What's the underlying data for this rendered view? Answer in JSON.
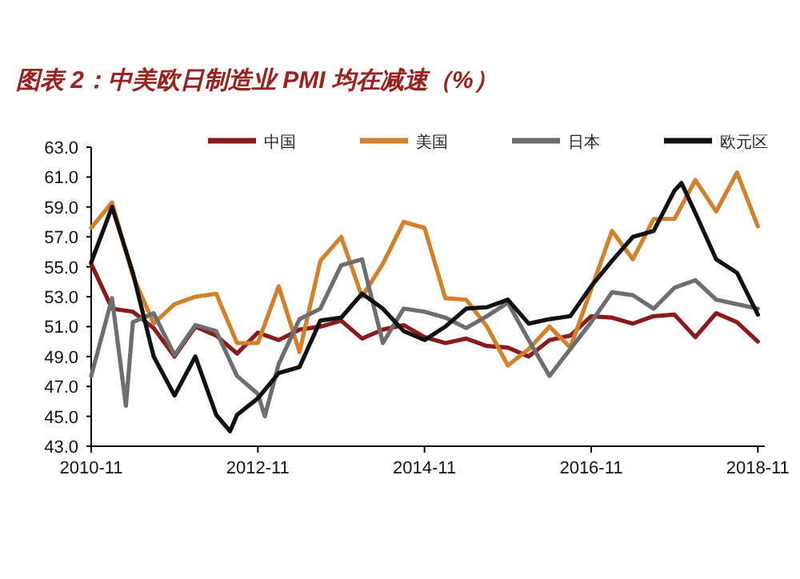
{
  "chart_data": {
    "type": "line",
    "title": "图表 2：中美欧日制造业 PMI 均在减速（%）",
    "xlim": [
      "2010-11",
      "2018-12"
    ],
    "xticks": [
      "2010-11",
      "2012-11",
      "2014-11",
      "2016-11",
      "2018-11"
    ],
    "ylim": [
      43,
      63
    ],
    "yticks": [
      {
        "value": 43,
        "label": "43.0"
      },
      {
        "value": 45,
        "label": "45.0"
      },
      {
        "value": 47,
        "label": "47.0"
      },
      {
        "value": 49,
        "label": "49.0"
      },
      {
        "value": 51,
        "label": "51.0"
      },
      {
        "value": 53,
        "label": "53.0"
      },
      {
        "value": 55,
        "label": "55.0"
      },
      {
        "value": 57,
        "label": "57.0"
      },
      {
        "value": 59,
        "label": "59.0"
      },
      {
        "value": 61,
        "label": "61.0"
      },
      {
        "value": 63,
        "label": "63.0"
      }
    ],
    "legend": "top",
    "series": [
      {
        "name": "中国",
        "color": "#8b1a1a",
        "x": [
          "2010-11",
          "2011-02",
          "2011-05",
          "2011-08",
          "2011-11",
          "2012-02",
          "2012-05",
          "2012-08",
          "2012-11",
          "2013-02",
          "2013-05",
          "2013-08",
          "2013-11",
          "2014-02",
          "2014-05",
          "2014-08",
          "2014-11",
          "2015-02",
          "2015-05",
          "2015-08",
          "2015-11",
          "2016-02",
          "2016-05",
          "2016-08",
          "2016-11",
          "2017-02",
          "2017-05",
          "2017-08",
          "2017-11",
          "2018-02",
          "2018-05",
          "2018-08",
          "2018-11"
        ],
        "values": [
          55.2,
          52.2,
          52.0,
          50.9,
          49.0,
          51.0,
          50.4,
          49.2,
          50.6,
          50.1,
          50.8,
          51.0,
          51.4,
          50.2,
          50.8,
          51.1,
          50.3,
          49.9,
          50.2,
          49.7,
          49.6,
          49.0,
          50.1,
          50.4,
          51.7,
          51.6,
          51.2,
          51.7,
          51.8,
          50.3,
          51.9,
          51.3,
          50.0
        ]
      },
      {
        "name": "美国",
        "color": "#d4802a",
        "x": [
          "2010-11",
          "2011-02",
          "2011-05",
          "2011-08",
          "2011-11",
          "2012-02",
          "2012-05",
          "2012-08",
          "2012-11",
          "2013-02",
          "2013-05",
          "2013-08",
          "2013-11",
          "2014-02",
          "2014-05",
          "2014-08",
          "2014-11",
          "2015-02",
          "2015-05",
          "2015-08",
          "2015-11",
          "2016-02",
          "2016-05",
          "2016-08",
          "2016-11",
          "2017-02",
          "2017-05",
          "2017-08",
          "2017-11",
          "2018-02",
          "2018-05",
          "2018-08",
          "2018-11"
        ],
        "values": [
          57.6,
          59.3,
          54.4,
          51.2,
          52.5,
          53.0,
          53.2,
          49.9,
          49.9,
          53.7,
          49.3,
          55.4,
          57.0,
          53.0,
          55.2,
          58.0,
          57.6,
          52.9,
          52.8,
          51.0,
          48.4,
          49.5,
          51.0,
          49.6,
          53.5,
          57.4,
          55.5,
          58.2,
          58.2,
          60.8,
          58.7,
          61.3,
          57.7
        ]
      },
      {
        "name": "日本",
        "color": "#6e6e6e",
        "x": [
          "2010-11",
          "2011-02",
          "2011-04",
          "2011-05",
          "2011-08",
          "2011-11",
          "2012-02",
          "2012-05",
          "2012-08",
          "2012-11",
          "2012-12",
          "2013-02",
          "2013-05",
          "2013-08",
          "2013-11",
          "2014-02",
          "2014-05",
          "2014-08",
          "2014-11",
          "2015-02",
          "2015-05",
          "2015-08",
          "2015-11",
          "2016-02",
          "2016-05",
          "2016-08",
          "2016-11",
          "2017-02",
          "2017-05",
          "2017-08",
          "2017-11",
          "2018-02",
          "2018-05",
          "2018-08",
          "2018-11"
        ],
        "values": [
          47.7,
          52.9,
          45.7,
          51.3,
          51.9,
          49.1,
          51.1,
          50.7,
          47.7,
          46.5,
          45.0,
          48.5,
          51.5,
          52.2,
          55.1,
          55.5,
          49.9,
          52.2,
          52.0,
          51.6,
          50.9,
          51.7,
          52.6,
          50.1,
          47.7,
          49.5,
          51.3,
          53.3,
          53.1,
          52.2,
          53.6,
          54.1,
          52.8,
          52.5,
          52.2
        ]
      },
      {
        "name": "欧元区",
        "color": "#111111",
        "x": [
          "2010-11",
          "2011-02",
          "2011-05",
          "2011-08",
          "2011-11",
          "2012-02",
          "2012-05",
          "2012-07",
          "2012-08",
          "2012-11",
          "2013-02",
          "2013-05",
          "2013-08",
          "2013-11",
          "2014-02",
          "2014-05",
          "2014-08",
          "2014-11",
          "2015-02",
          "2015-05",
          "2015-08",
          "2015-11",
          "2016-02",
          "2016-05",
          "2016-08",
          "2016-11",
          "2017-02",
          "2017-05",
          "2017-08",
          "2017-11",
          "2017-12",
          "2018-02",
          "2018-05",
          "2018-08",
          "2018-11"
        ],
        "values": [
          55.3,
          59.0,
          54.6,
          49.0,
          46.4,
          49.0,
          45.1,
          44.0,
          45.1,
          46.2,
          47.9,
          48.3,
          51.4,
          51.6,
          53.2,
          52.2,
          50.7,
          50.1,
          51.0,
          52.2,
          52.3,
          52.8,
          51.2,
          51.5,
          51.7,
          53.7,
          55.4,
          57.0,
          57.4,
          60.1,
          60.6,
          58.6,
          55.5,
          54.6,
          51.8
        ]
      }
    ]
  }
}
